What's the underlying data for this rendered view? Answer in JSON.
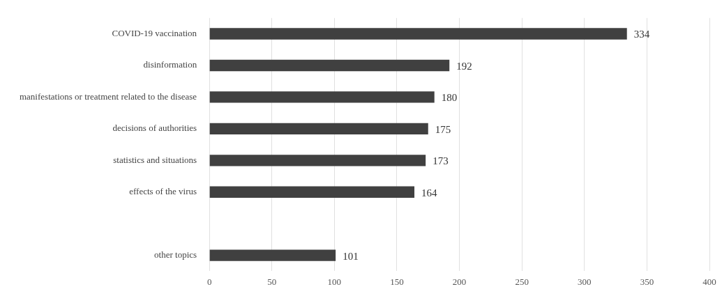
{
  "chart_data": {
    "type": "bar",
    "orientation": "horizontal",
    "categories": [
      "COVID-19 vaccination",
      "disinformation",
      "manifestations or treatment related to the disease",
      "decisions of authorities",
      "statistics and situations",
      "effects of the virus",
      null,
      "other topics"
    ],
    "values": [
      334,
      192,
      180,
      175,
      173,
      164,
      null,
      101
    ],
    "color": "#404040",
    "xlim": [
      0,
      400
    ],
    "xticks": [
      0,
      50,
      100,
      150,
      200,
      250,
      300,
      350,
      400
    ],
    "grid": "x",
    "data_labels": true
  }
}
